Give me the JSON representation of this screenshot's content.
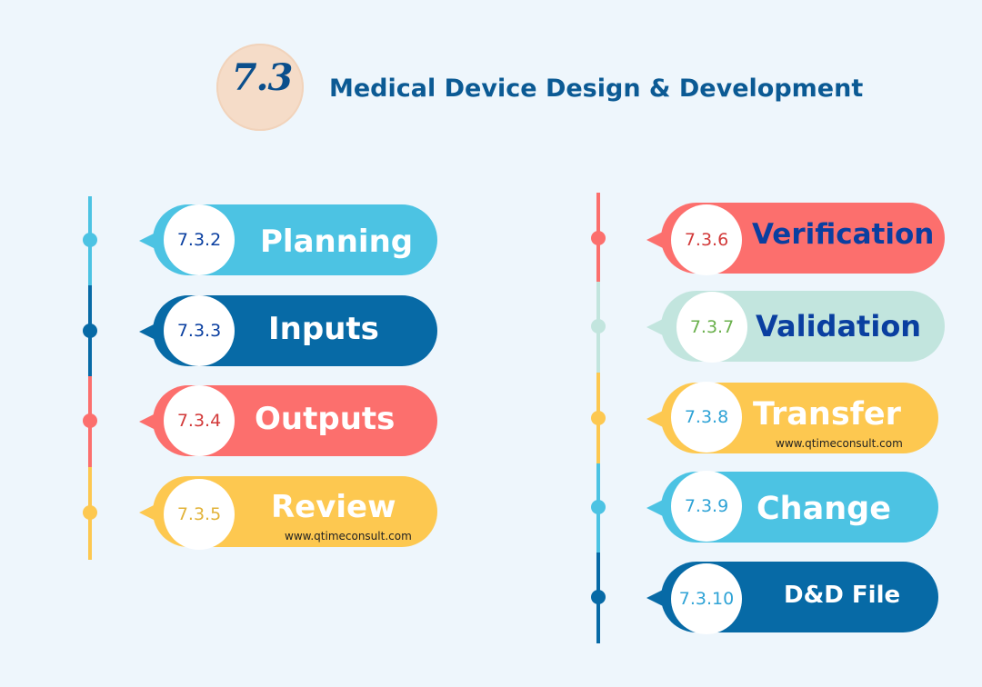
{
  "header": {
    "badge": "7.3",
    "title": "Medical Device Design & Development"
  },
  "colors": {
    "sky": "#4cc3e3",
    "navy": "#076aa6",
    "coral": "#fc6f6d",
    "amber": "#fdc850",
    "mint": "#c2e5de",
    "label_white": "#ffffff",
    "label_blue": "#0a3fa0"
  },
  "left_steps": [
    {
      "number": "7.3.2",
      "label": "Planning"
    },
    {
      "number": "7.3.3",
      "label": "Inputs"
    },
    {
      "number": "7.3.4",
      "label": "Outputs"
    },
    {
      "number": "7.3.5",
      "label": "Review",
      "watermark": "www.qtimeconsult.com"
    }
  ],
  "right_steps": [
    {
      "number": "7.3.6",
      "label": "Verification"
    },
    {
      "number": "7.3.7",
      "label": "Validation"
    },
    {
      "number": "7.3.8",
      "label": "Transfer",
      "watermark": "www.qtimeconsult.com"
    },
    {
      "number": "7.3.9",
      "label": "Change"
    },
    {
      "number": "7.3.10",
      "label": "D&D File"
    }
  ]
}
